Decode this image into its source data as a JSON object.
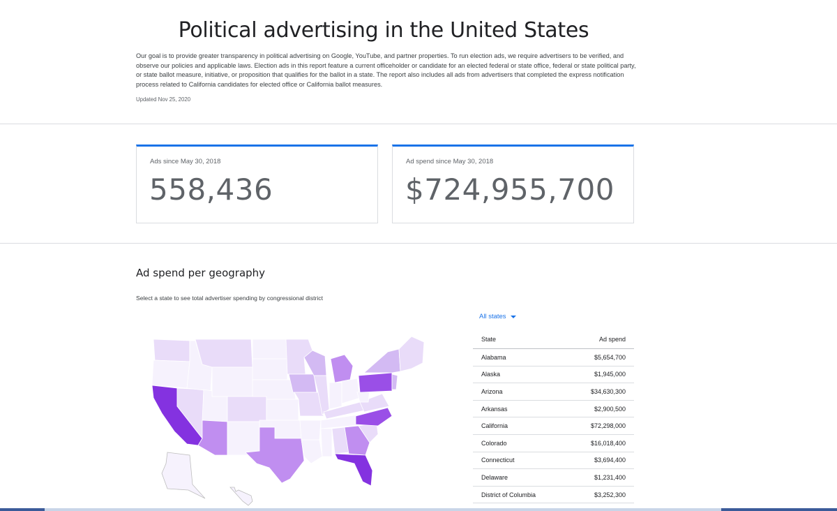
{
  "header": {
    "title": "Political advertising in the United States",
    "intro": "Our goal is to provide greater transparency in political advertising on Google, YouTube, and partner properties. To run election ads, we require advertisers to be verified, and observe our policies and applicable laws. Election ads in this report feature a current officeholder or candidate for an elected federal or state office, federal or state political party, or state ballot measure, initiative, or proposition that qualifies for the ballot in a state. The report also includes all ads from advertisers that completed the express notification process related to California candidates for elected office or California ballot measures.",
    "updated": "Updated Nov 25, 2020"
  },
  "stats": {
    "ads_label": "Ads since May 30, 2018",
    "ads_value": "558,436",
    "spend_label": "Ad spend since May 30, 2018",
    "spend_value": "$724,955,700"
  },
  "geo": {
    "title": "Ad spend per geography",
    "subtitle": "Select a state to see total advertiser spending by congressional district",
    "filter_label": "All states",
    "table": {
      "headers": [
        "State",
        "Ad spend"
      ],
      "rows": [
        {
          "state": "Alabama",
          "spend": "$5,654,700"
        },
        {
          "state": "Alaska",
          "spend": "$1,945,000"
        },
        {
          "state": "Arizona",
          "spend": "$34,630,300"
        },
        {
          "state": "Arkansas",
          "spend": "$2,900,500"
        },
        {
          "state": "California",
          "spend": "$72,298,000"
        },
        {
          "state": "Colorado",
          "spend": "$16,018,400"
        },
        {
          "state": "Connecticut",
          "spend": "$3,694,400"
        },
        {
          "state": "Delaware",
          "spend": "$1,231,400"
        },
        {
          "state": "District of Columbia",
          "spend": "$3,252,300"
        }
      ]
    }
  },
  "colors": {
    "accent": "#1a73e8",
    "map_scale": [
      "#f6f2fd",
      "#e9dcf9",
      "#d3baf3",
      "#c08ef0",
      "#9a4fe7",
      "#8432e0"
    ]
  }
}
